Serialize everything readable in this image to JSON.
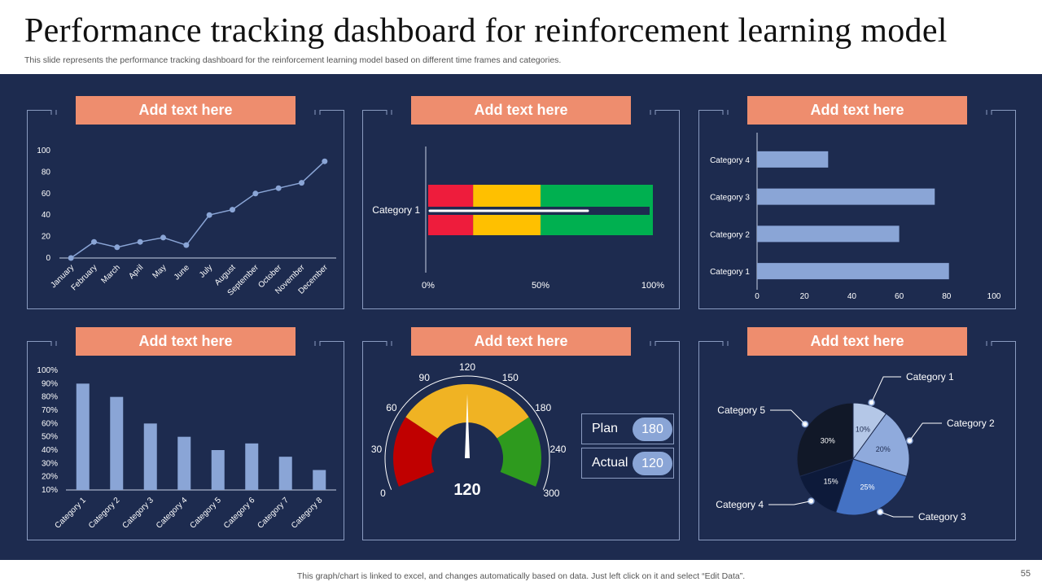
{
  "slide": {
    "title": "Performance tracking dashboard for reinforcement learning model",
    "subtitle": "This slide represents the performance tracking dashboard for the reinforcement learning model based on different time frames and categories.",
    "footer": "This graph/chart is linked to excel, and changes automatically based on data. Just left click on it and select “Edit Data”.",
    "page_number": "55"
  },
  "colors": {
    "background": "#1d2b4f",
    "header": "#ee8d6e",
    "series": "#8aa5d6",
    "frame": "#8a9bc0",
    "red": "#ee1c3c",
    "amber": "#ffc000",
    "green": "#00b050"
  },
  "panels": [
    {
      "header": "Add text here"
    },
    {
      "header": "Add text here"
    },
    {
      "header": "Add text here"
    },
    {
      "header": "Add text here"
    },
    {
      "header": "Add text here"
    },
    {
      "header": "Add text here"
    }
  ],
  "gauge_info": {
    "plan_label": "Plan",
    "plan_value": "180",
    "actual_label": "Actual",
    "actual_value": "120"
  },
  "chart_data": [
    {
      "type": "line",
      "categories": [
        "January",
        "February",
        "March",
        "April",
        "May",
        "June",
        "July",
        "August",
        "September",
        "October",
        "November",
        "December"
      ],
      "values": [
        0,
        15,
        10,
        15,
        19,
        12,
        40,
        45,
        60,
        65,
        70,
        90
      ],
      "ylim": [
        0,
        100
      ],
      "yticks": [
        0,
        20,
        40,
        60,
        80,
        100
      ]
    },
    {
      "type": "bar",
      "orientation": "horizontal-bullet",
      "categories": [
        "Category 1"
      ],
      "bands": [
        {
          "from": 0,
          "to": 20,
          "color": "#ee1c3c"
        },
        {
          "from": 20,
          "to": 50,
          "color": "#ffc000"
        },
        {
          "from": 50,
          "to": 100,
          "color": "#00b050"
        }
      ],
      "value": 71,
      "xlim": [
        0,
        100
      ],
      "xticks": [
        "0%",
        "50%",
        "100%"
      ]
    },
    {
      "type": "bar",
      "orientation": "horizontal",
      "categories": [
        "Category 1",
        "Category 2",
        "Category 3",
        "Category 4"
      ],
      "values": [
        81,
        60,
        75,
        30
      ],
      "xlim": [
        0,
        100
      ],
      "xticks": [
        0,
        20,
        40,
        60,
        80,
        100
      ]
    },
    {
      "type": "bar",
      "categories": [
        "Category 1",
        "Category 2",
        "Category 3",
        "Category 4",
        "Category 5",
        "Category 6",
        "Category 7",
        "Category 8"
      ],
      "values": [
        90,
        80,
        60,
        50,
        40,
        45,
        35,
        25
      ],
      "ylim": [
        10,
        100
      ],
      "yticks": [
        "10%",
        "20%",
        "30%",
        "40%",
        "50%",
        "60%",
        "70%",
        "80%",
        "90%",
        "100%"
      ]
    },
    {
      "type": "gauge",
      "ticks": [
        "0",
        "30",
        "60",
        "90",
        "120",
        "150",
        "180",
        "240",
        "300"
      ],
      "bands": [
        {
          "from": 0,
          "to": 2,
          "color": "#c00000"
        },
        {
          "from": 2,
          "to": 6,
          "color": "#f0b323"
        },
        {
          "from": 6,
          "to": 8,
          "color": "#2e9a1e"
        }
      ],
      "value": 120,
      "value_label": "120"
    },
    {
      "type": "pie",
      "categories": [
        "Category 1",
        "Category 2",
        "Category 3",
        "Category 4",
        "Category 5"
      ],
      "values": [
        10,
        20,
        25,
        15,
        30
      ],
      "labels": [
        "10%",
        "20%",
        "25%",
        "15%",
        "30%"
      ],
      "colors": [
        "#b4c7e7",
        "#8faadc",
        "#4472c4",
        "#0d1a3a",
        "#111828"
      ]
    }
  ]
}
